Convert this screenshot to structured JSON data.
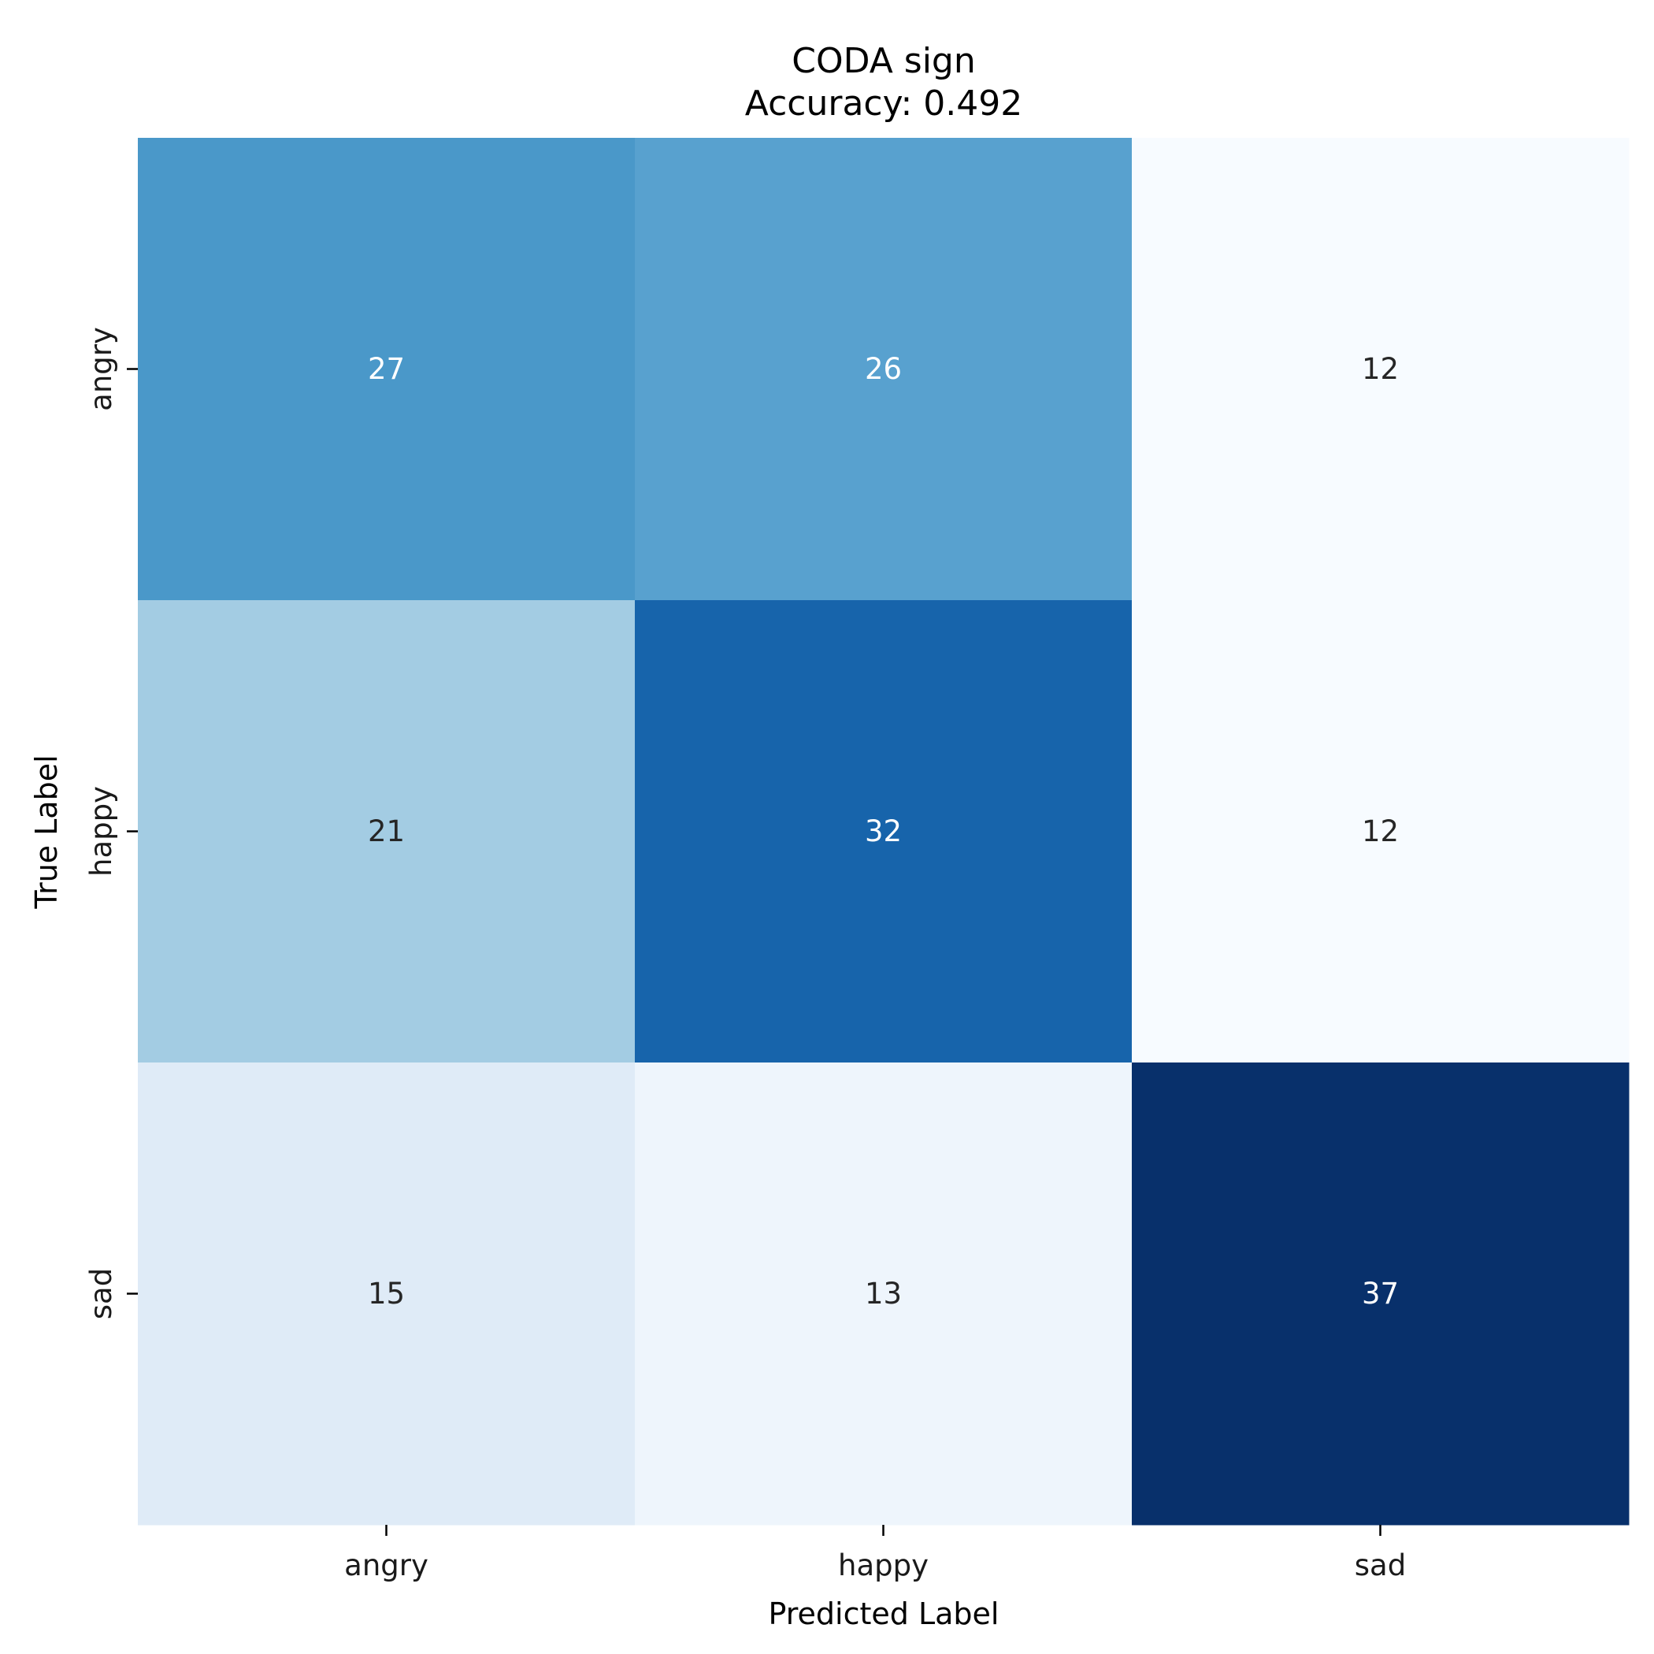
{
  "chart_data": {
    "type": "heatmap",
    "title": "CODA sign",
    "subtitle": "Accuracy: 0.492",
    "xlabel": "Predicted Label",
    "ylabel": "True Label",
    "x_categories": [
      "angry",
      "happy",
      "sad"
    ],
    "y_categories": [
      "angry",
      "happy",
      "sad"
    ],
    "values": [
      [
        27,
        26,
        12
      ],
      [
        21,
        32,
        12
      ],
      [
        15,
        13,
        37
      ]
    ],
    "colormap": "Blues",
    "colorbar": false,
    "cell_colors": [
      [
        "#4a98c9",
        "#58a1cf",
        "#f7fbff"
      ],
      [
        "#a3cce3",
        "#1764ab",
        "#f7fbff"
      ],
      [
        "#dfebf7",
        "#eef5fc",
        "#08306b"
      ]
    ],
    "annotation_colors": {
      "light": "#ffffff",
      "dark": "#262626"
    }
  }
}
